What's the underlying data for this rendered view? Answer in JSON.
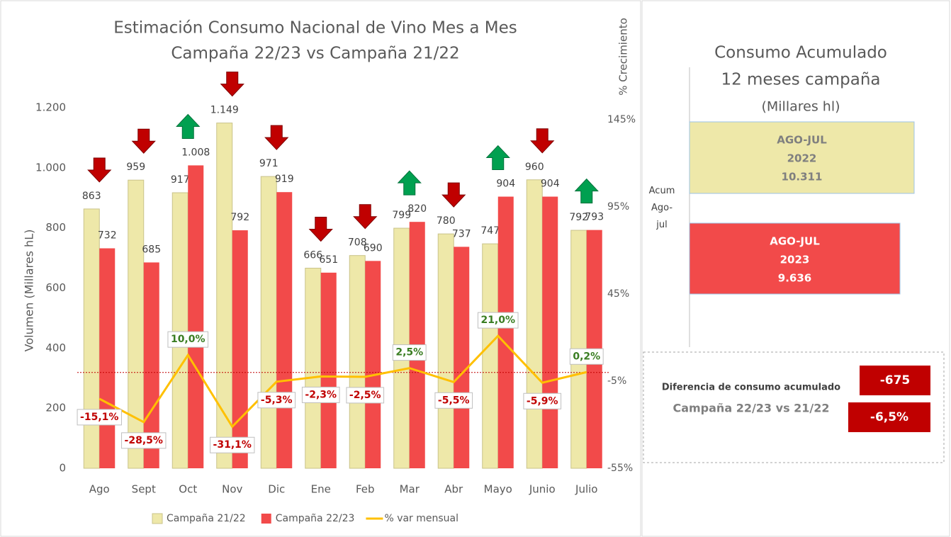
{
  "chart_data": {
    "type": "bar",
    "title": "Estimación Consumo Nacional de Vino Mes a Mes",
    "subtitle": "Campaña 22/23 vs Campaña 21/22",
    "y_label": "Volumen (Millares hL)",
    "y2_label": "% Crecimiento",
    "categories": [
      "Ago",
      "Sept",
      "Oct",
      "Nov",
      "Dic",
      "Ene",
      "Feb",
      "Mar",
      "Abr",
      "Mayo",
      "Junio",
      "Julio"
    ],
    "series": [
      {
        "name": "Campaña 21/22",
        "type": "bar",
        "color": "#EEE8A9",
        "values": [
          863,
          959,
          917,
          1149,
          971,
          666,
          708,
          799,
          780,
          747,
          960,
          792
        ],
        "value_labels": [
          "863",
          "959",
          "917",
          "1.149",
          "971",
          "666",
          "708",
          "799",
          "780",
          "747",
          "960",
          "792"
        ]
      },
      {
        "name": "Campaña 22/23",
        "type": "bar",
        "color": "#F24A4A",
        "values": [
          732,
          685,
          1008,
          792,
          919,
          651,
          690,
          820,
          737,
          904,
          904,
          793
        ],
        "value_labels": [
          "732",
          "685",
          "1.008",
          "792",
          "919",
          "651",
          "690",
          "820",
          "737",
          "904",
          "904",
          "793"
        ]
      },
      {
        "name": "% var mensual",
        "type": "line",
        "axis": "y2",
        "color": "#FFC000",
        "values": [
          -15.1,
          -28.5,
          10.0,
          -31.1,
          -5.3,
          -2.3,
          -2.5,
          2.5,
          -5.5,
          21.0,
          -5.9,
          0.2
        ],
        "value_labels": [
          "-15,1%",
          "-28,5%",
          "10,0%",
          "-31,1%",
          "-5,3%",
          "-2,3%",
          "-2,5%",
          "2,5%",
          "-5,5%",
          "21,0%",
          "-5,9%",
          "0,2%"
        ]
      }
    ],
    "ylim": [
      0,
      1200
    ],
    "yticks": [
      0,
      200,
      400,
      600,
      800,
      {
        "value": 1000,
        "label": "1.000"
      },
      {
        "value": 1200,
        "label": "1.200"
      }
    ],
    "y2lim": [
      -55,
      152
    ],
    "y2ticks": [
      {
        "value": -55,
        "label": "-55%"
      },
      {
        "value": -5,
        "label": "-5%"
      },
      {
        "value": 45,
        "label": "45%"
      },
      {
        "value": 95,
        "label": "95%"
      },
      {
        "value": 145,
        "label": "145%"
      }
    ],
    "reference_lines": [
      {
        "axis": "y2",
        "value": 0,
        "color": "#C00000"
      }
    ],
    "grid": false,
    "legend": "bottom"
  },
  "panel": {
    "title": [
      "Consumo Acumulado",
      "12 meses campaña",
      "(Millares hl)"
    ],
    "side_label": "Acum Ago-jul",
    "boxes": [
      {
        "lines": [
          "AGO-JUL",
          "2022",
          "10.311"
        ],
        "color": "#EEE8A9"
      },
      {
        "lines": [
          "AGO-JUL",
          "2023",
          "9.636"
        ],
        "color": "#F24A4A"
      }
    ],
    "difference": {
      "lines": [
        "Diferencia de consumo acumulado",
        "Campaña 22/23 vs 21/22"
      ],
      "values": [
        "-675",
        "-6,5%"
      ],
      "color": "#C00000"
    }
  }
}
